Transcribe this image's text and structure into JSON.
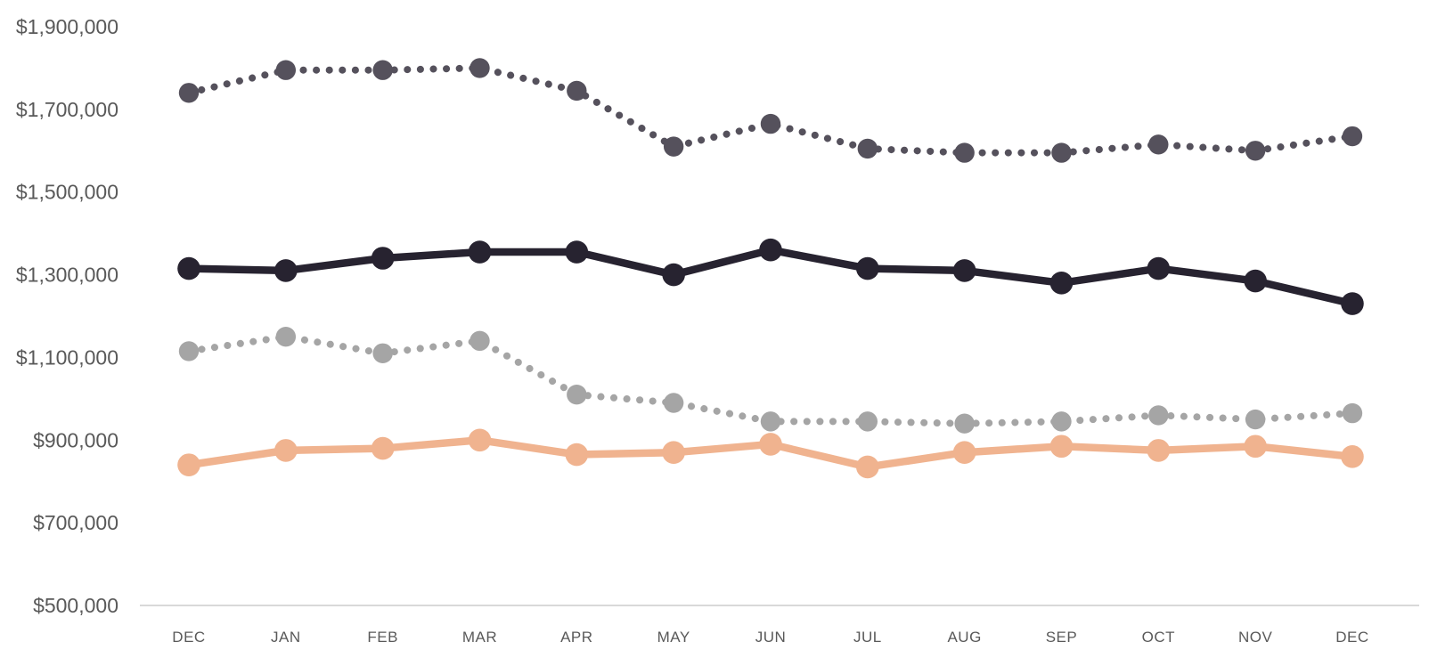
{
  "chart_data": {
    "type": "line",
    "title": "",
    "xlabel": "",
    "ylabel": "",
    "grid": false,
    "legend": false,
    "categories": [
      "DEC",
      "JAN",
      "FEB",
      "MAR",
      "APR",
      "MAY",
      "JUN",
      "JUL",
      "AUG",
      "SEP",
      "OCT",
      "NOV",
      "DEC"
    ],
    "series": [
      {
        "name": "dark-dotted-series",
        "style": "dotted",
        "color": "#55515C",
        "values": [
          1740000,
          1795000,
          1795000,
          1800000,
          1745000,
          1610000,
          1665000,
          1605000,
          1595000,
          1595000,
          1615000,
          1600000,
          1635000
        ]
      },
      {
        "name": "black-solid-series",
        "style": "solid",
        "color": "#272330",
        "values": [
          1315000,
          1310000,
          1340000,
          1355000,
          1355000,
          1300000,
          1360000,
          1315000,
          1310000,
          1280000,
          1315000,
          1285000,
          1230000
        ]
      },
      {
        "name": "gray-dotted-series",
        "style": "dotted",
        "color": "#A5A5A5",
        "values": [
          1115000,
          1150000,
          1110000,
          1140000,
          1010000,
          990000,
          945000,
          945000,
          940000,
          945000,
          960000,
          950000,
          965000
        ]
      },
      {
        "name": "orange-solid-series",
        "style": "solid",
        "color": "#F0B38F",
        "values": [
          840000,
          875000,
          880000,
          900000,
          865000,
          870000,
          890000,
          835000,
          870000,
          885000,
          875000,
          885000,
          860000
        ]
      }
    ],
    "y_axis": {
      "min": 500000,
      "max": 1900000,
      "step": 200000,
      "tick_labels": [
        "$500,000",
        "$700,000",
        "$900,000",
        "$1,100,000",
        "$1,300,000",
        "$1,500,000",
        "$1,700,000",
        "$1,900,000"
      ]
    },
    "colors": {
      "axis_line": "#D9D9D9",
      "tick_label": "#595959",
      "background": "#FFFFFF"
    }
  }
}
